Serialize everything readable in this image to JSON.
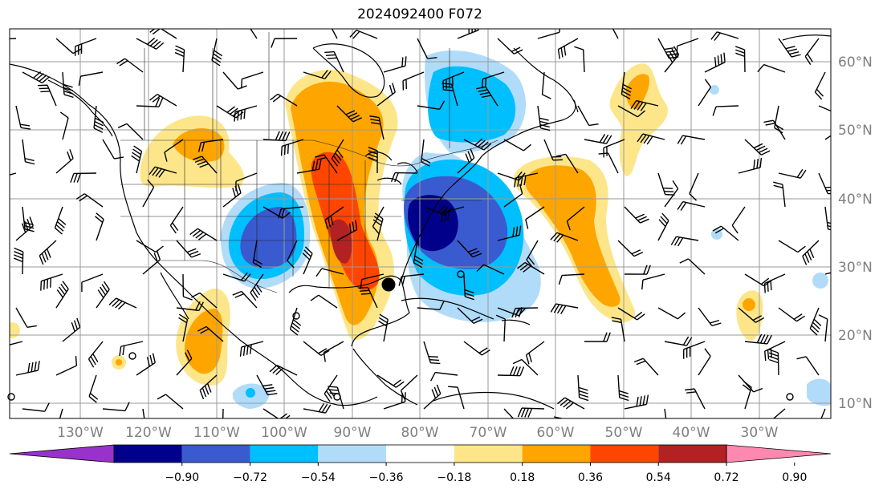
{
  "title": "2024092400 F072",
  "lon_labels": [
    "130°W",
    "120°W",
    "110°W",
    "100°W",
    "90°W",
    "80°W",
    "70°W",
    "60°W",
    "50°W",
    "40°W",
    "30°W"
  ],
  "lat_labels": [
    "60°N",
    "50°N",
    "40°N",
    "30°N",
    "20°N",
    "10°N"
  ],
  "colorbar": {
    "ticks": [
      "−0.90",
      "−0.72",
      "−0.54",
      "−0.36",
      "−0.18",
      "0.18",
      "0.36",
      "0.54",
      "0.72",
      "0.90"
    ],
    "colors": [
      "#9932cc",
      "#00008b",
      "#3a5bcf",
      "#00bfff",
      "#b0dcfa",
      "#ffffff",
      "#fde68a",
      "#ffa500",
      "#ff4500",
      "#b22222",
      "#ff88b0"
    ]
  },
  "marker": "storm-center-dot"
}
